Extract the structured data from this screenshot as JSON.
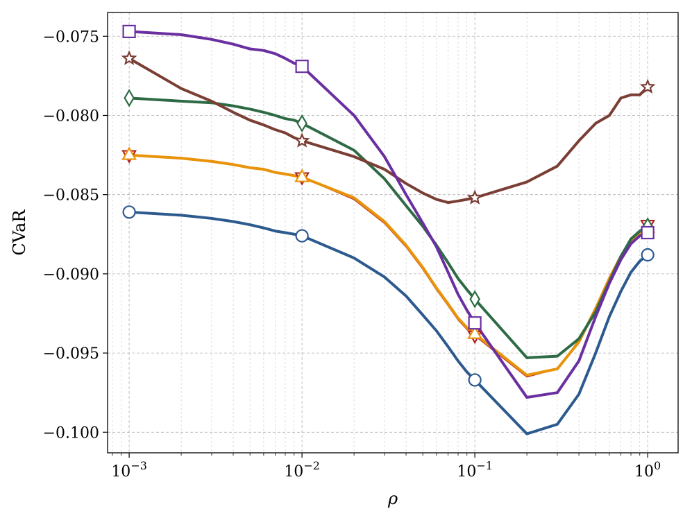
{
  "chart_data": {
    "type": "line",
    "title": "",
    "xlabel": "ρ",
    "ylabel": "CVaR",
    "xscale": "log",
    "xlim": [
      0.00075,
      1.5
    ],
    "ylim": [
      -0.1013,
      -0.0735
    ],
    "grid": "on (major and minor, dashed)",
    "legend": "none",
    "x": [
      0.001,
      0.002,
      0.003,
      0.004,
      0.005,
      0.006,
      0.007,
      0.008,
      0.009,
      0.01,
      0.02,
      0.03,
      0.04,
      0.05,
      0.06,
      0.07,
      0.08,
      0.09,
      0.1,
      0.2,
      0.3,
      0.4,
      0.5,
      0.6,
      0.7,
      0.8,
      0.9,
      1.0
    ],
    "x_ticks": [
      {
        "value": 0.001,
        "label": "10−3",
        "base": "10",
        "exp": "−3"
      },
      {
        "value": 0.01,
        "label": "10−2",
        "base": "10",
        "exp": "−2"
      },
      {
        "value": 0.1,
        "label": "10−1",
        "base": "10",
        "exp": "−1"
      },
      {
        "value": 1,
        "label": "100",
        "base": "10",
        "exp": "0"
      }
    ],
    "y_ticks": [
      {
        "value": -0.075,
        "label": "−0.075"
      },
      {
        "value": -0.08,
        "label": "−0.080"
      },
      {
        "value": -0.085,
        "label": "−0.085"
      },
      {
        "value": -0.09,
        "label": "−0.090"
      },
      {
        "value": -0.095,
        "label": "−0.095"
      },
      {
        "value": -0.1,
        "label": "−0.100"
      }
    ],
    "marker_x": [
      0.001,
      0.01,
      0.1,
      1.0
    ],
    "series": [
      {
        "color": "#b22222",
        "marker": "triangle-down",
        "line_width": 2,
        "values": [
          -0.0825,
          -0.0827,
          -0.0829,
          -0.0831,
          -0.0833,
          -0.0834,
          -0.0836,
          -0.0837,
          -0.0838,
          -0.0839,
          -0.0853,
          -0.0868,
          -0.0883,
          -0.0897,
          -0.091,
          -0.092,
          -0.0929,
          -0.0935,
          -0.0939,
          -0.0965,
          -0.096,
          -0.0942,
          -0.0921,
          -0.0902,
          -0.0888,
          -0.0878,
          -0.0873,
          -0.0869
        ]
      },
      {
        "color": "#e8930a",
        "marker": "triangle-up",
        "line_width": 4,
        "values": [
          -0.0825,
          -0.0827,
          -0.0829,
          -0.0831,
          -0.0833,
          -0.0834,
          -0.0836,
          -0.0837,
          -0.0838,
          -0.0839,
          -0.0852,
          -0.0867,
          -0.0882,
          -0.0896,
          -0.0909,
          -0.0919,
          -0.0928,
          -0.0934,
          -0.0938,
          -0.0964,
          -0.096,
          -0.0943,
          -0.0922,
          -0.0903,
          -0.0889,
          -0.0879,
          -0.0874,
          -0.0871
        ]
      },
      {
        "color": "#2d5a8e",
        "marker": "circle",
        "line_width": 4,
        "values": [
          -0.0861,
          -0.0863,
          -0.0865,
          -0.0867,
          -0.0869,
          -0.0871,
          -0.0873,
          -0.0874,
          -0.0875,
          -0.0876,
          -0.089,
          -0.0902,
          -0.0914,
          -0.0926,
          -0.0936,
          -0.0946,
          -0.0955,
          -0.0962,
          -0.0967,
          -0.1001,
          -0.0995,
          -0.0976,
          -0.095,
          -0.0927,
          -0.0911,
          -0.0899,
          -0.0892,
          -0.0888
        ]
      },
      {
        "color": "#2e6b45",
        "marker": "diamond",
        "line_width": 4,
        "values": [
          -0.0789,
          -0.0791,
          -0.0792,
          -0.0794,
          -0.0796,
          -0.0798,
          -0.08,
          -0.0802,
          -0.0803,
          -0.0805,
          -0.0822,
          -0.084,
          -0.0857,
          -0.087,
          -0.0882,
          -0.0893,
          -0.0903,
          -0.091,
          -0.0916,
          -0.0953,
          -0.0952,
          -0.0941,
          -0.0924,
          -0.0905,
          -0.0889,
          -0.0878,
          -0.0873,
          -0.087
        ]
      },
      {
        "color": "#7a3e34",
        "marker": "star",
        "line_width": 4,
        "values": [
          -0.0764,
          -0.0783,
          -0.0791,
          -0.0798,
          -0.0803,
          -0.0806,
          -0.0809,
          -0.0811,
          -0.0814,
          -0.0816,
          -0.0826,
          -0.0834,
          -0.0843,
          -0.0849,
          -0.0853,
          -0.0855,
          -0.0854,
          -0.0853,
          -0.0852,
          -0.0842,
          -0.0832,
          -0.0816,
          -0.0805,
          -0.08,
          -0.0789,
          -0.0787,
          -0.0787,
          -0.0782
        ]
      },
      {
        "color": "#6a2fa0",
        "marker": "square",
        "line_width": 4,
        "values": [
          -0.0747,
          -0.0749,
          -0.0752,
          -0.0755,
          -0.0758,
          -0.0759,
          -0.0761,
          -0.0764,
          -0.0767,
          -0.0769,
          -0.08,
          -0.0826,
          -0.085,
          -0.0868,
          -0.0883,
          -0.0899,
          -0.0913,
          -0.0923,
          -0.0931,
          -0.0978,
          -0.0975,
          -0.0955,
          -0.0927,
          -0.0906,
          -0.0891,
          -0.0881,
          -0.0876,
          -0.0874
        ]
      }
    ]
  }
}
